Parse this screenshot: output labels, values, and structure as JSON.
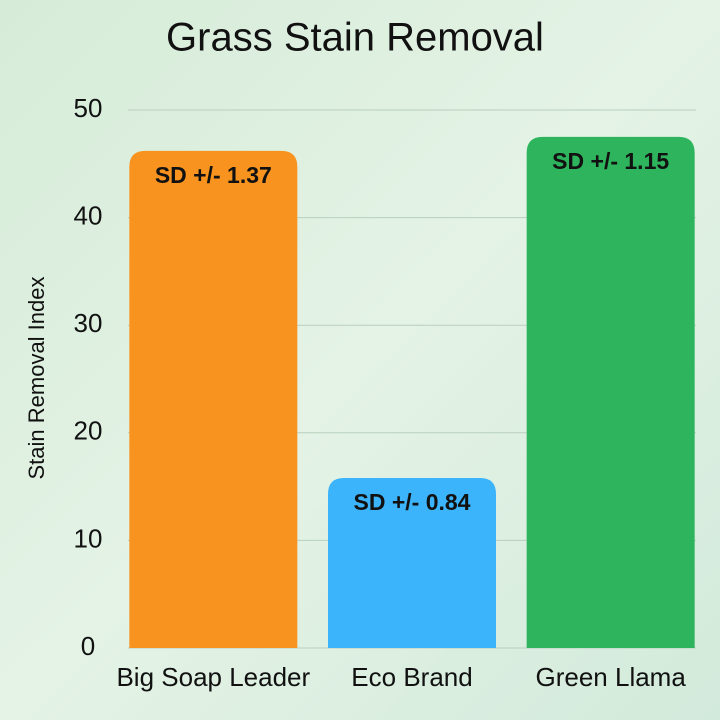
{
  "chart_data": {
    "type": "bar",
    "title": "Grass Stain Removal",
    "y_label": "Stain Removal Index",
    "categories": [
      "Big Soap Leader",
      "Eco Brand",
      "Green Llama"
    ],
    "values": [
      46.2,
      15.8,
      47.5
    ],
    "colors": [
      "#f7931e",
      "#3bb4fb",
      "#2db45c"
    ],
    "annotations": [
      "SD +/- 1.37",
      "SD +/- 0.84",
      "SD +/- 1.15"
    ],
    "ylim": [
      0,
      50
    ],
    "yticks": [
      0,
      10,
      20,
      30,
      40,
      50
    ],
    "grid": true
  }
}
